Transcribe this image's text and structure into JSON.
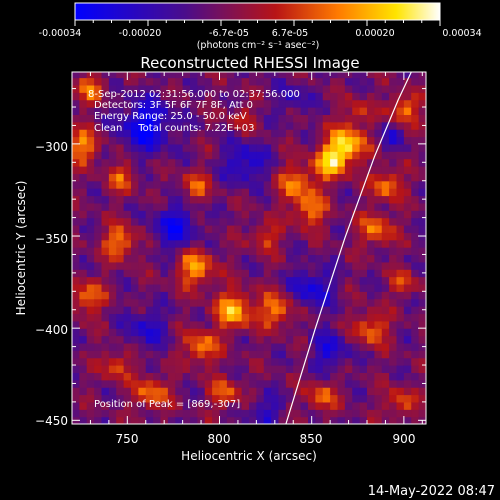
{
  "colorbar": {
    "ticks": [
      "-0.00034",
      "-0.00020",
      "-6.7e-05",
      "6.7e-05",
      "0.00020",
      "0.00034"
    ],
    "unit_label": "(photons cm⁻² s⁻¹ asec⁻²)",
    "colors": [
      "#0000ff",
      "#4a0d8c",
      "#b81416",
      "#ff7a00",
      "#ffe400",
      "#ffffff"
    ]
  },
  "image": {
    "title": "Reconstructed RHESSI Image",
    "info_lines": [
      "8-Sep-2012 02:31:56.000 to 02:37:56.000",
      "Detectors: 3F 5F 6F 7F 8F, Att 0",
      "Energy Range: 25.0 - 50.0 keV",
      "Clean     Total counts: 7.22E+03"
    ],
    "peak_label": "Position of Peak = [869,-307]",
    "footer_date": "14-May-2022 08:47"
  },
  "chart_data": {
    "type": "heatmap",
    "title": "Reconstructed RHESSI Image",
    "xlabel": "Heliocentric X (arcsec)",
    "ylabel": "Heliocentric Y (arcsec)",
    "xlim": [
      720,
      912
    ],
    "ylim": [
      -452,
      -261
    ],
    "x_ticks": [
      750,
      800,
      850,
      900
    ],
    "y_ticks": [
      -450,
      -400,
      -350,
      -300
    ],
    "x_tick_labels": [
      "750",
      "800",
      "850",
      "900"
    ],
    "y_tick_labels": [
      "−450",
      "−400",
      "−350",
      "−300"
    ],
    "value_range": [
      -0.00034,
      0.00034
    ],
    "peak": [
      869,
      -307
    ],
    "limb_curve": [
      [
        836,
        -452
      ],
      [
        852,
        -400
      ],
      [
        868,
        -351
      ],
      [
        884,
        -307
      ],
      [
        897,
        -276
      ],
      [
        904,
        -261
      ]
    ],
    "bright_regions": [
      {
        "x": 869,
        "y": -300,
        "r": 10,
        "v": 0.00034
      },
      {
        "x": 860,
        "y": -310,
        "r": 9,
        "v": 0.00028
      },
      {
        "x": 842,
        "y": -321,
        "r": 10,
        "v": 0.00022
      },
      {
        "x": 900,
        "y": -281,
        "r": 8,
        "v": 0.00024
      },
      {
        "x": 891,
        "y": -322,
        "r": 8,
        "v": 0.00024
      },
      {
        "x": 885,
        "y": -346,
        "r": 9,
        "v": 0.00022
      },
      {
        "x": 849,
        "y": -336,
        "r": 9,
        "v": 0.00022
      },
      {
        "x": 831,
        "y": -390,
        "r": 9,
        "v": 0.00024
      },
      {
        "x": 808,
        "y": -390,
        "r": 10,
        "v": 0.0003
      },
      {
        "x": 787,
        "y": -367,
        "r": 10,
        "v": 0.00026
      },
      {
        "x": 790,
        "y": -410,
        "r": 9,
        "v": 0.00024
      },
      {
        "x": 746,
        "y": -353,
        "r": 9,
        "v": 0.00024
      },
      {
        "x": 728,
        "y": -383,
        "r": 9,
        "v": 0.00022
      },
      {
        "x": 726,
        "y": -301,
        "r": 9,
        "v": 0.00024
      },
      {
        "x": 747,
        "y": -318,
        "r": 8,
        "v": 0.00018
      },
      {
        "x": 730,
        "y": -270,
        "r": 8,
        "v": 0.0002
      },
      {
        "x": 787,
        "y": -323,
        "r": 8,
        "v": 0.00018
      },
      {
        "x": 763,
        "y": -435,
        "r": 9,
        "v": 0.00022
      },
      {
        "x": 744,
        "y": -420,
        "r": 8,
        "v": 0.00018
      },
      {
        "x": 803,
        "y": -435,
        "r": 8,
        "v": 0.0002
      },
      {
        "x": 855,
        "y": -437,
        "r": 8,
        "v": 0.0002
      },
      {
        "x": 882,
        "y": -400,
        "r": 9,
        "v": 0.00022
      },
      {
        "x": 898,
        "y": -440,
        "r": 8,
        "v": 0.00018
      },
      {
        "x": 825,
        "y": -350,
        "r": 8,
        "v": 0.00016
      },
      {
        "x": 900,
        "y": -375,
        "r": 7,
        "v": 0.00016
      },
      {
        "x": 812,
        "y": -286,
        "r": 7,
        "v": 0.00012
      },
      {
        "x": 875,
        "y": -282,
        "r": 7,
        "v": 0.00014
      }
    ],
    "dark_regions": [
      {
        "x": 760,
        "y": -290,
        "r": 14,
        "v": -0.00026
      },
      {
        "x": 776,
        "y": -345,
        "r": 12,
        "v": -0.00022
      },
      {
        "x": 814,
        "y": -310,
        "r": 11,
        "v": -0.0002
      },
      {
        "x": 850,
        "y": -378,
        "r": 11,
        "v": -0.0002
      },
      {
        "x": 860,
        "y": -412,
        "r": 10,
        "v": -0.00018
      },
      {
        "x": 760,
        "y": -400,
        "r": 11,
        "v": -0.00016
      },
      {
        "x": 825,
        "y": -445,
        "r": 9,
        "v": -0.00014
      },
      {
        "x": 893,
        "y": -295,
        "r": 7,
        "v": -0.00012
      },
      {
        "x": 840,
        "y": -275,
        "r": 9,
        "v": -0.00012
      }
    ]
  }
}
